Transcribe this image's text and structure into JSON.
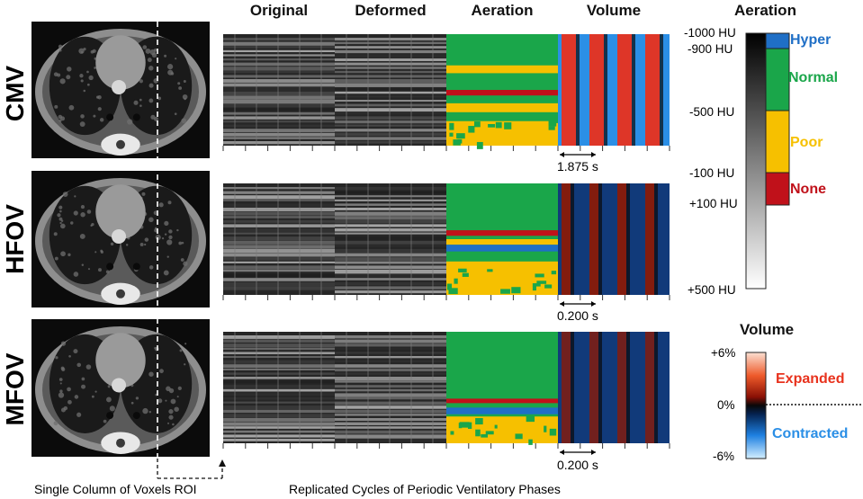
{
  "columns": [
    "Original",
    "Deformed",
    "Aeration",
    "Volume"
  ],
  "rows": [
    {
      "label": "CMV",
      "timescale": "1.875 s"
    },
    {
      "label": "HFOV",
      "timescale": "0.200 s"
    },
    {
      "label": "MFOV",
      "timescale": "0.200 s"
    }
  ],
  "aeration_legend": {
    "title": "Aeration",
    "hu_ticks": [
      "-1000 HU",
      "-900 HU",
      "-500 HU",
      "-100 HU",
      "+100 HU",
      "+500 HU"
    ],
    "categories": [
      {
        "name": "Hyper",
        "color": "#1f6fc6"
      },
      {
        "name": "Normal",
        "color": "#1aa64a"
      },
      {
        "name": "Poor",
        "color": "#f6c000"
      },
      {
        "name": "None",
        "color": "#c0111a"
      }
    ]
  },
  "volume_legend": {
    "title": "Volume",
    "ticks": [
      "+6%",
      "0%",
      "-6%"
    ],
    "labels": [
      {
        "name": "Expanded",
        "color": "#e8321d"
      },
      {
        "name": "Contracted",
        "color": "#2b8fe6"
      }
    ]
  },
  "captions": {
    "roi": "Single Column of Voxels ROI",
    "cycles": "Replicated Cycles of Periodic Ventilatory Phases"
  },
  "colors": {
    "normal_green": "#1aa64a",
    "poor_yellow": "#f6c000",
    "none_red": "#c0111a",
    "hyper_blue": "#1f6fc6",
    "expanded_red": "#e8321d",
    "contracted_blue": "#2b8fe6"
  }
}
